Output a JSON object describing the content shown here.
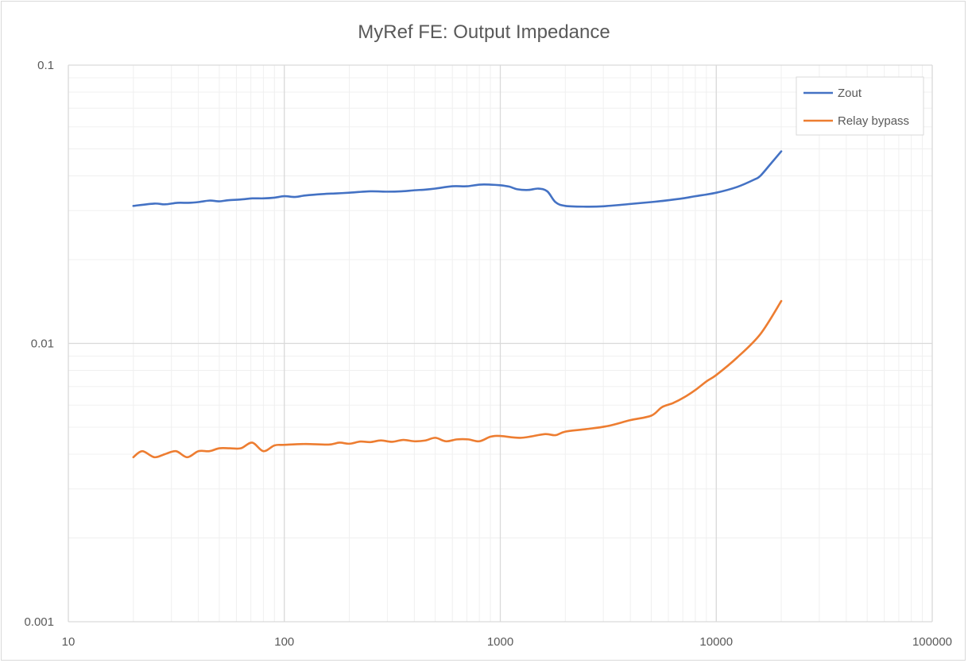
{
  "chart_data": {
    "type": "line",
    "title": "MyRef FE: Output Impedance",
    "xlabel": "",
    "ylabel": "",
    "x_scale": "log",
    "y_scale": "log",
    "xlim": [
      10,
      100000
    ],
    "ylim": [
      0.001,
      0.1
    ],
    "x_ticks": [
      "10",
      "100",
      "1000",
      "10000",
      "100000"
    ],
    "y_ticks": [
      "0.1",
      "0.01",
      "0.001"
    ],
    "grid": true,
    "legend_position": "top-right",
    "series": [
      {
        "name": "Zout",
        "color": "#4472c4",
        "points": [
          [
            20,
            0.0312
          ],
          [
            25,
            0.0318
          ],
          [
            28,
            0.0316
          ],
          [
            32,
            0.032
          ],
          [
            36,
            0.032
          ],
          [
            40,
            0.0322
          ],
          [
            45,
            0.0326
          ],
          [
            50,
            0.0324
          ],
          [
            55,
            0.0327
          ],
          [
            63,
            0.0329
          ],
          [
            71,
            0.0332
          ],
          [
            80,
            0.0332
          ],
          [
            90,
            0.0334
          ],
          [
            100,
            0.0338
          ],
          [
            112,
            0.0336
          ],
          [
            125,
            0.034
          ],
          [
            150,
            0.0344
          ],
          [
            175,
            0.0346
          ],
          [
            200,
            0.0348
          ],
          [
            250,
            0.0352
          ],
          [
            300,
            0.0351
          ],
          [
            350,
            0.0352
          ],
          [
            400,
            0.0355
          ],
          [
            450,
            0.0357
          ],
          [
            500,
            0.036
          ],
          [
            600,
            0.0367
          ],
          [
            700,
            0.0367
          ],
          [
            800,
            0.0372
          ],
          [
            900,
            0.0372
          ],
          [
            1000,
            0.037
          ],
          [
            1100,
            0.0366
          ],
          [
            1200,
            0.0358
          ],
          [
            1350,
            0.0356
          ],
          [
            1500,
            0.036
          ],
          [
            1650,
            0.0352
          ],
          [
            1800,
            0.0322
          ],
          [
            2000,
            0.0312
          ],
          [
            2500,
            0.031
          ],
          [
            3000,
            0.0311
          ],
          [
            4000,
            0.0317
          ],
          [
            5000,
            0.0322
          ],
          [
            6000,
            0.0327
          ],
          [
            7000,
            0.0332
          ],
          [
            8000,
            0.0338
          ],
          [
            10000,
            0.0348
          ],
          [
            12500,
            0.0365
          ],
          [
            15000,
            0.0388
          ],
          [
            16000,
            0.04
          ],
          [
            18000,
            0.0445
          ],
          [
            20000,
            0.049
          ]
        ]
      },
      {
        "name": "Relay bypass",
        "color": "#ed7d31",
        "points": [
          [
            20,
            0.0039
          ],
          [
            22,
            0.0041
          ],
          [
            25,
            0.0039
          ],
          [
            28,
            0.004
          ],
          [
            31.5,
            0.0041
          ],
          [
            35.5,
            0.0039
          ],
          [
            40,
            0.0041
          ],
          [
            45,
            0.0041
          ],
          [
            50,
            0.0042
          ],
          [
            56,
            0.0042
          ],
          [
            63,
            0.0042
          ],
          [
            71,
            0.0044
          ],
          [
            80,
            0.0041
          ],
          [
            90,
            0.0043
          ],
          [
            100,
            0.00432
          ],
          [
            125,
            0.00435
          ],
          [
            160,
            0.00433
          ],
          [
            180,
            0.0044
          ],
          [
            200,
            0.00436
          ],
          [
            225,
            0.00444
          ],
          [
            250,
            0.00442
          ],
          [
            280,
            0.00448
          ],
          [
            315,
            0.00443
          ],
          [
            355,
            0.0045
          ],
          [
            400,
            0.00445
          ],
          [
            450,
            0.00448
          ],
          [
            500,
            0.00458
          ],
          [
            560,
            0.00445
          ],
          [
            630,
            0.00452
          ],
          [
            710,
            0.00452
          ],
          [
            800,
            0.00445
          ],
          [
            900,
            0.00462
          ],
          [
            1000,
            0.00465
          ],
          [
            1250,
            0.00458
          ],
          [
            1600,
            0.00472
          ],
          [
            1800,
            0.00468
          ],
          [
            2000,
            0.00482
          ],
          [
            2500,
            0.00492
          ],
          [
            3150,
            0.00505
          ],
          [
            4000,
            0.0053
          ],
          [
            5000,
            0.0055
          ],
          [
            5600,
            0.0059
          ],
          [
            6300,
            0.0061
          ],
          [
            7100,
            0.0064
          ],
          [
            8000,
            0.0068
          ],
          [
            9000,
            0.0073
          ],
          [
            10000,
            0.0077
          ],
          [
            12500,
            0.0089
          ],
          [
            16000,
            0.0108
          ],
          [
            20000,
            0.0142
          ]
        ]
      }
    ]
  }
}
